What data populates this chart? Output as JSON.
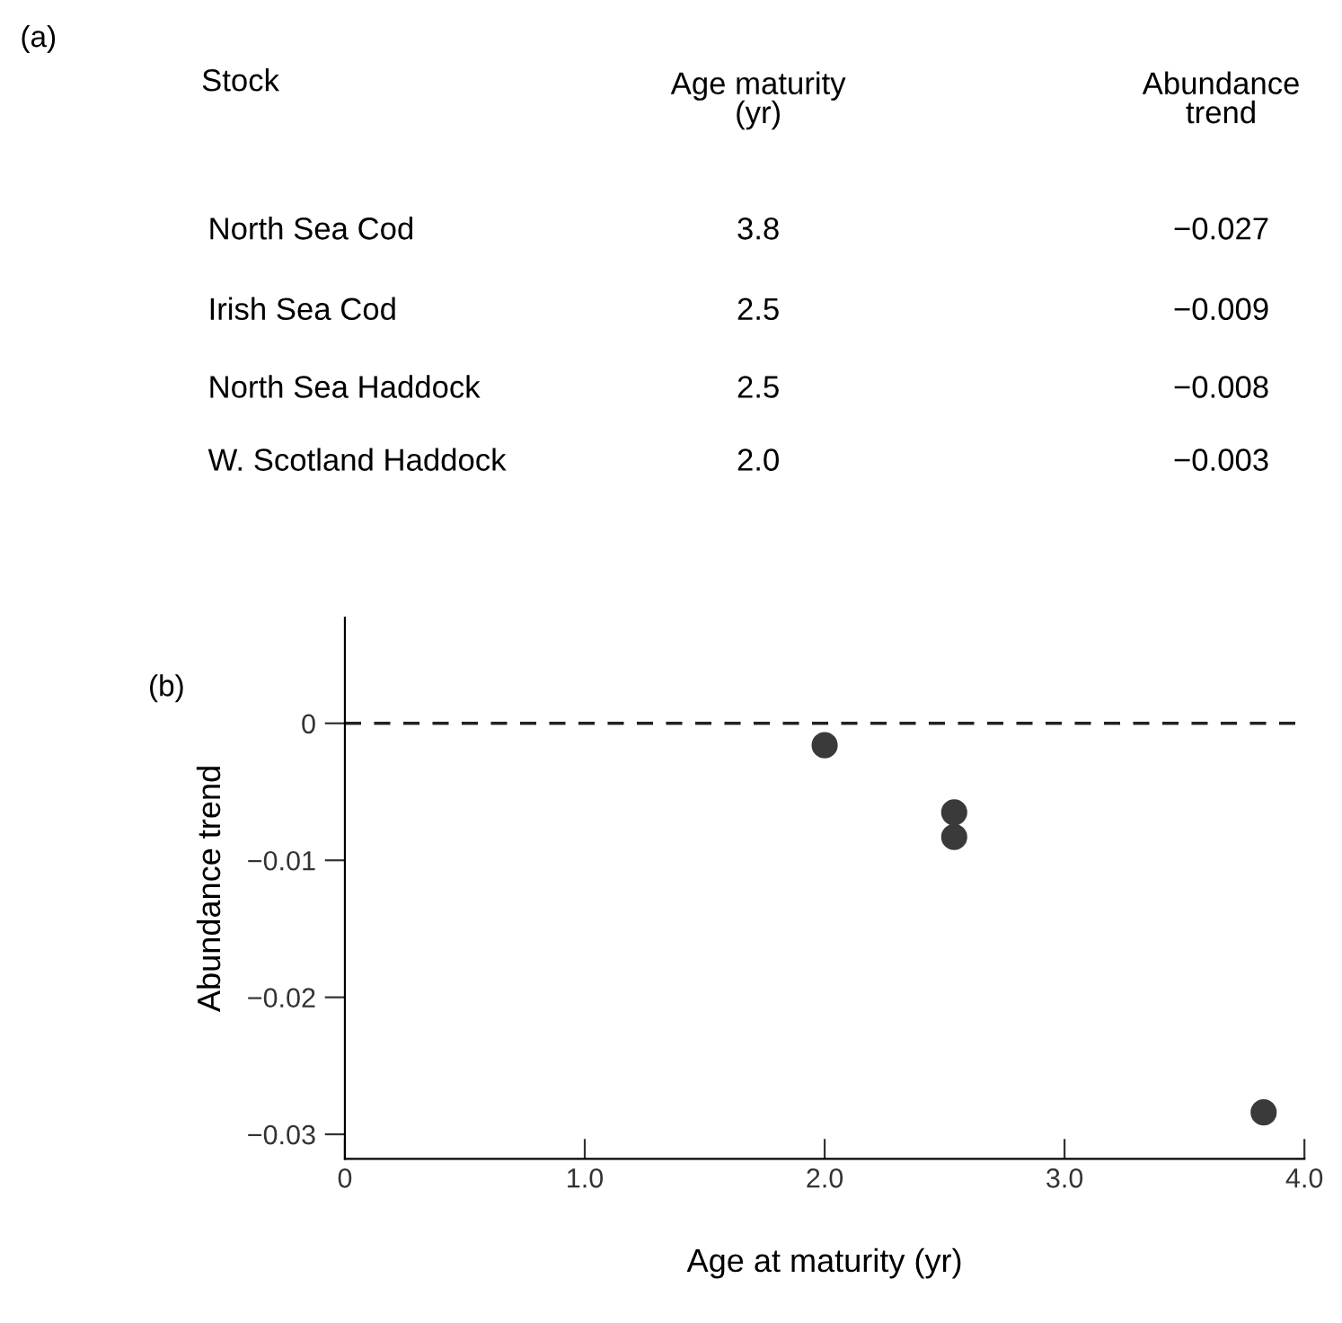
{
  "chart_data": [
    {
      "type": "other",
      "title": "(a)",
      "annotations": [
        "Stock",
        "Age maturity\n(yr)",
        "Abundance\ntrend",
        "North Sea Cod",
        "3.8",
        "−0.027",
        "Irish Sea Cod",
        "2.5",
        "−0.009",
        "North Sea Haddock",
        "2.5",
        "−0.008",
        "W. Scotland Haddock",
        "2.0",
        "−0.003"
      ]
    },
    {
      "type": "scatter",
      "title": "(b)",
      "xlabel": "Age at maturity (yr)",
      "ylabel": "Abundance trend",
      "x": [
        2.0,
        2.54,
        2.54,
        3.83
      ],
      "values": [
        -0.0016,
        -0.0065,
        -0.0083,
        -0.0284
      ],
      "color": "#3a3a3a",
      "marker": "circle",
      "xlim": [
        0,
        4.0
      ],
      "xticks": [
        0,
        {
          "value": 1,
          "label": "1.0"
        },
        {
          "value": 2,
          "label": "2.0"
        },
        {
          "value": 3,
          "label": "3.0"
        },
        {
          "value": 4,
          "label": "4.0"
        }
      ],
      "ylim": [
        -0.0318,
        0.0077
      ],
      "yticks": [
        0,
        {
          "value": -0.01,
          "label": "−0.01"
        },
        {
          "value": -0.02,
          "label": "−0.02"
        },
        {
          "value": -0.03,
          "label": "−0.03"
        }
      ],
      "grid": false,
      "ref_lines": [
        {
          "axis": "y",
          "value": 0,
          "color": "#222222",
          "line_style": "dashed"
        }
      ]
    }
  ]
}
